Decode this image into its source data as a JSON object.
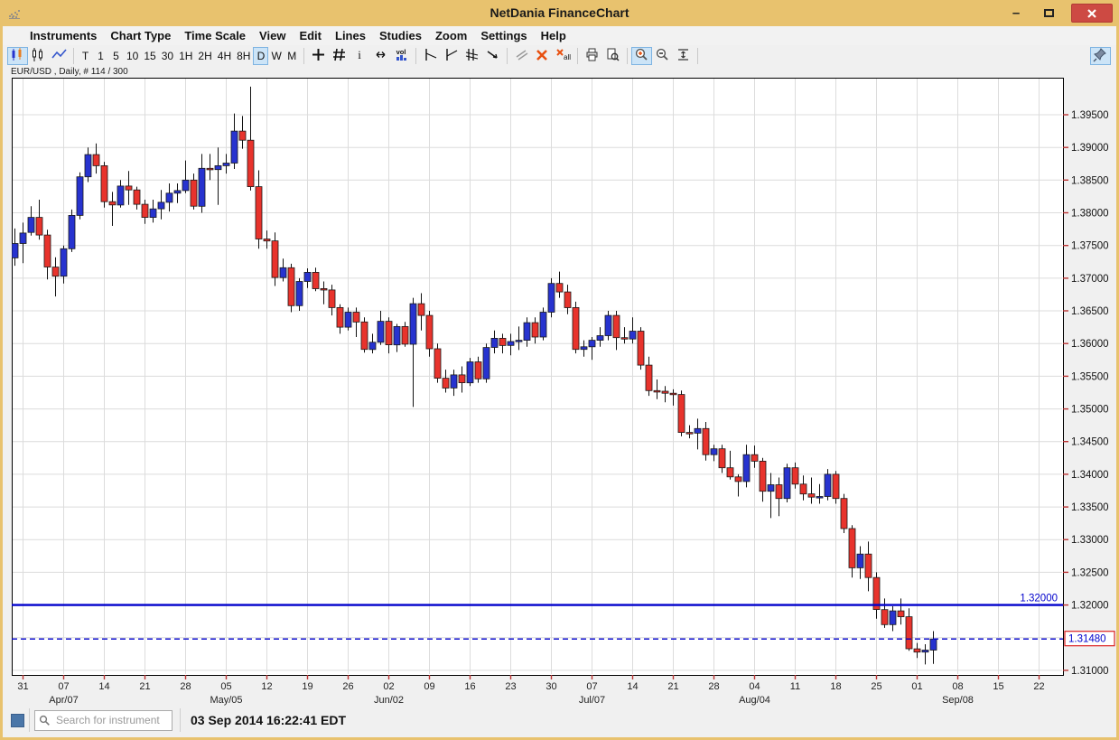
{
  "window": {
    "title": "NetDania FinanceChart",
    "controls": {
      "minimize": "–",
      "close": "x"
    }
  },
  "menu": {
    "items": [
      "Instruments",
      "Chart Type",
      "Time Scale",
      "View",
      "Edit",
      "Lines",
      "Studies",
      "Zoom",
      "Settings",
      "Help"
    ]
  },
  "toolbar": {
    "chart_type_icons": [
      {
        "icon": "candles-colored",
        "name": "chart-type-candlestick",
        "selected": true
      },
      {
        "icon": "candles-outline",
        "name": "chart-type-bars",
        "selected": false
      },
      {
        "icon": "line-zigzag",
        "name": "chart-type-line",
        "selected": false
      }
    ],
    "timeframes": [
      "T",
      "1",
      "5",
      "10",
      "15",
      "30",
      "1H",
      "2H",
      "4H",
      "8H",
      "D",
      "W",
      "M"
    ],
    "selected_timeframe": "D",
    "tool_icons_1": [
      {
        "icon": "crosshair",
        "name": "crosshair-tool",
        "selected": false
      },
      {
        "icon": "grid",
        "name": "grid-toggle",
        "selected": false
      },
      {
        "icon": "info",
        "name": "info-tool",
        "selected": false
      },
      {
        "icon": "h-arrows",
        "name": "horizontal-scroll-tool",
        "selected": false
      },
      {
        "icon": "volume",
        "name": "volume-toggle",
        "selected": false
      }
    ],
    "tool_icons_2": [
      {
        "icon": "trend-down",
        "name": "trendline-down-tool",
        "selected": false
      },
      {
        "icon": "trend-up",
        "name": "trendline-up-tool",
        "selected": false
      },
      {
        "icon": "channel",
        "name": "channel-tool",
        "selected": false
      },
      {
        "icon": "ray",
        "name": "ray-tool",
        "selected": false
      }
    ],
    "tool_icons_3": [
      {
        "icon": "parallel",
        "name": "parallel-lines-tool",
        "selected": false
      },
      {
        "icon": "delete-x",
        "name": "delete-line-button",
        "selected": false
      },
      {
        "icon": "delete-all",
        "name": "delete-all-lines-button",
        "selected": false
      }
    ],
    "tool_icons_4": [
      {
        "icon": "print",
        "name": "print-button",
        "selected": false
      },
      {
        "icon": "preview",
        "name": "print-preview-button",
        "selected": false
      }
    ],
    "tool_icons_5": [
      {
        "icon": "zoom-in",
        "name": "zoom-in-button",
        "selected": true
      },
      {
        "icon": "zoom-out",
        "name": "zoom-out-button",
        "selected": false
      },
      {
        "icon": "fit-vertical",
        "name": "fit-vertical-button",
        "selected": false
      }
    ],
    "pin_button": {
      "icon": "pin",
      "name": "pin-chart-button",
      "selected": true
    }
  },
  "chart": {
    "instrument_label": "EUR/USD , Daily, # 114 / 300",
    "instrument": "EUR/USD",
    "timeframe": "Daily",
    "bar_counter": "# 114 / 300"
  },
  "chart_data": {
    "type": "candlestick",
    "title": "EUR/USD Daily",
    "y_axis": {
      "tick_labels": [
        "1.39500",
        "1.39000",
        "1.38500",
        "1.38000",
        "1.37500",
        "1.37000",
        "1.36500",
        "1.36000",
        "1.35500",
        "1.35000",
        "1.34500",
        "1.34000",
        "1.33500",
        "1.33000",
        "1.32500",
        "1.32000",
        "1.31000"
      ],
      "grid_values": [
        1.395,
        1.39,
        1.385,
        1.38,
        1.375,
        1.37,
        1.365,
        1.36,
        1.355,
        1.35,
        1.345,
        1.34,
        1.335,
        1.33,
        1.325,
        1.32,
        1.315,
        1.31
      ],
      "range": [
        1.30931,
        1.40067
      ]
    },
    "x_axis": {
      "day_ticks": [
        "31",
        "07",
        "14",
        "21",
        "28",
        "05",
        "12",
        "19",
        "26",
        "02",
        "09",
        "16",
        "23",
        "30",
        "07",
        "14",
        "21",
        "28",
        "04",
        "11",
        "18",
        "25",
        "01",
        "08",
        "15",
        "22"
      ],
      "month_labels": [
        {
          "text": "Apr/07",
          "tick_index": 1
        },
        {
          "text": "May/05",
          "tick_index": 5
        },
        {
          "text": "Jun/02",
          "tick_index": 9
        },
        {
          "text": "Jul/07",
          "tick_index": 14
        },
        {
          "text": "Aug/04",
          "tick_index": 18
        },
        {
          "text": "Sep/08",
          "tick_index": 23
        }
      ]
    },
    "horizontal_lines": [
      {
        "price": 1.32,
        "label": "1.32000",
        "style": "solid",
        "label_position": "chart",
        "color": "#0000CC"
      },
      {
        "price": 1.3148,
        "label": "1.31480",
        "style": "dashed",
        "label_position": "axis-boxed",
        "color": "#0000CC"
      }
    ],
    "ohlc": [
      [
        1.3731,
        1.3776,
        1.3719,
        1.3753
      ],
      [
        1.3753,
        1.3785,
        1.3723,
        1.3769
      ],
      [
        1.377,
        1.381,
        1.3765,
        1.3793
      ],
      [
        1.3793,
        1.382,
        1.3759,
        1.3766
      ],
      [
        1.3766,
        1.3774,
        1.3698,
        1.3717
      ],
      [
        1.3717,
        1.3732,
        1.3672,
        1.3703
      ],
      [
        1.3703,
        1.375,
        1.3692,
        1.3745
      ],
      [
        1.3745,
        1.3805,
        1.374,
        1.3796
      ],
      [
        1.3796,
        1.3862,
        1.379,
        1.3855
      ],
      [
        1.3855,
        1.39,
        1.3847,
        1.3889
      ],
      [
        1.3889,
        1.3906,
        1.386,
        1.3872
      ],
      [
        1.3872,
        1.3878,
        1.3808,
        1.3817
      ],
      [
        1.3817,
        1.3832,
        1.378,
        1.3812
      ],
      [
        1.3812,
        1.385,
        1.3808,
        1.3841
      ],
      [
        1.3841,
        1.3864,
        1.3812,
        1.3835
      ],
      [
        1.3835,
        1.384,
        1.3805,
        1.3813
      ],
      [
        1.3813,
        1.382,
        1.3783,
        1.3793
      ],
      [
        1.3793,
        1.382,
        1.3785,
        1.3806
      ],
      [
        1.3806,
        1.3835,
        1.379,
        1.3816
      ],
      [
        1.3816,
        1.3845,
        1.3802,
        1.383
      ],
      [
        1.383,
        1.3845,
        1.3815,
        1.3834
      ],
      [
        1.3834,
        1.388,
        1.383,
        1.385
      ],
      [
        1.385,
        1.386,
        1.3805,
        1.381
      ],
      [
        1.381,
        1.389,
        1.38,
        1.3868
      ],
      [
        1.3868,
        1.389,
        1.385,
        1.3866
      ],
      [
        1.3866,
        1.39,
        1.3812,
        1.3872
      ],
      [
        1.3872,
        1.389,
        1.386,
        1.3876
      ],
      [
        1.3876,
        1.3952,
        1.3867,
        1.3925
      ],
      [
        1.3925,
        1.3948,
        1.3898,
        1.3911
      ],
      [
        1.3911,
        1.3993,
        1.3834,
        1.384
      ],
      [
        1.384,
        1.3865,
        1.3745,
        1.376
      ],
      [
        1.376,
        1.3773,
        1.3745,
        1.3757
      ],
      [
        1.3757,
        1.377,
        1.3688,
        1.3701
      ],
      [
        1.3701,
        1.373,
        1.3695,
        1.3716
      ],
      [
        1.3716,
        1.3722,
        1.3648,
        1.3658
      ],
      [
        1.3658,
        1.37,
        1.365,
        1.3695
      ],
      [
        1.3695,
        1.3715,
        1.3685,
        1.3709
      ],
      [
        1.3709,
        1.3716,
        1.368,
        1.3684
      ],
      [
        1.3684,
        1.3695,
        1.366,
        1.3682
      ],
      [
        1.3682,
        1.369,
        1.3643,
        1.3655
      ],
      [
        1.3655,
        1.366,
        1.3615,
        1.3625
      ],
      [
        1.3625,
        1.3655,
        1.362,
        1.3648
      ],
      [
        1.3648,
        1.3655,
        1.361,
        1.3633
      ],
      [
        1.3633,
        1.364,
        1.3586,
        1.3591
      ],
      [
        1.3591,
        1.3615,
        1.3585,
        1.3602
      ],
      [
        1.3602,
        1.365,
        1.3598,
        1.3634
      ],
      [
        1.3634,
        1.364,
        1.3585,
        1.3598
      ],
      [
        1.3598,
        1.363,
        1.3587,
        1.3626
      ],
      [
        1.3626,
        1.3633,
        1.3595,
        1.3599
      ],
      [
        1.3599,
        1.367,
        1.3503,
        1.3661
      ],
      [
        1.3661,
        1.3677,
        1.362,
        1.3643
      ],
      [
        1.3643,
        1.365,
        1.358,
        1.3592
      ],
      [
        1.3592,
        1.36,
        1.354,
        1.3547
      ],
      [
        1.3547,
        1.356,
        1.3525,
        1.3532
      ],
      [
        1.3532,
        1.356,
        1.352,
        1.3552
      ],
      [
        1.3552,
        1.3565,
        1.3525,
        1.354
      ],
      [
        1.354,
        1.3578,
        1.3535,
        1.3572
      ],
      [
        1.3572,
        1.358,
        1.354,
        1.3546
      ],
      [
        1.3546,
        1.36,
        1.354,
        1.3594
      ],
      [
        1.3594,
        1.362,
        1.3585,
        1.3608
      ],
      [
        1.3608,
        1.3615,
        1.3585,
        1.3597
      ],
      [
        1.3597,
        1.3615,
        1.3582,
        1.3603
      ],
      [
        1.3603,
        1.3626,
        1.359,
        1.3605
      ],
      [
        1.3605,
        1.364,
        1.3595,
        1.3632
      ],
      [
        1.3632,
        1.364,
        1.36,
        1.361
      ],
      [
        1.361,
        1.3655,
        1.3605,
        1.3648
      ],
      [
        1.3648,
        1.37,
        1.364,
        1.3692
      ],
      [
        1.3692,
        1.371,
        1.367,
        1.3679
      ],
      [
        1.3679,
        1.369,
        1.3645,
        1.3655
      ],
      [
        1.3655,
        1.3664,
        1.3585,
        1.3591
      ],
      [
        1.3591,
        1.3605,
        1.358,
        1.3595
      ],
      [
        1.3595,
        1.361,
        1.3575,
        1.3605
      ],
      [
        1.3605,
        1.3625,
        1.3595,
        1.3612
      ],
      [
        1.3612,
        1.365,
        1.3605,
        1.3643
      ],
      [
        1.3643,
        1.365,
        1.359,
        1.3609
      ],
      [
        1.3609,
        1.3625,
        1.36,
        1.3607
      ],
      [
        1.3607,
        1.364,
        1.36,
        1.3619
      ],
      [
        1.3619,
        1.3625,
        1.356,
        1.3567
      ],
      [
        1.3567,
        1.358,
        1.352,
        1.3528
      ],
      [
        1.3528,
        1.3545,
        1.3515,
        1.3527
      ],
      [
        1.3527,
        1.3535,
        1.351,
        1.3524
      ],
      [
        1.3524,
        1.353,
        1.3505,
        1.3522
      ],
      [
        1.3522,
        1.3528,
        1.3458,
        1.3464
      ],
      [
        1.3464,
        1.3475,
        1.3455,
        1.3463
      ],
      [
        1.3463,
        1.3485,
        1.3438,
        1.347
      ],
      [
        1.347,
        1.348,
        1.3421,
        1.343
      ],
      [
        1.343,
        1.3445,
        1.342,
        1.3439
      ],
      [
        1.3439,
        1.3445,
        1.3402,
        1.341
      ],
      [
        1.341,
        1.3436,
        1.3392,
        1.3396
      ],
      [
        1.3396,
        1.34,
        1.3366,
        1.3389
      ],
      [
        1.3389,
        1.3445,
        1.338,
        1.343
      ],
      [
        1.343,
        1.3444,
        1.341,
        1.342
      ],
      [
        1.342,
        1.3425,
        1.3358,
        1.3374
      ],
      [
        1.3374,
        1.3402,
        1.3333,
        1.3384
      ],
      [
        1.3384,
        1.3395,
        1.3336,
        1.3363
      ],
      [
        1.3363,
        1.3416,
        1.3357,
        1.341
      ],
      [
        1.341,
        1.3418,
        1.3378,
        1.3385
      ],
      [
        1.3385,
        1.3398,
        1.336,
        1.337
      ],
      [
        1.337,
        1.3395,
        1.3355,
        1.3365
      ],
      [
        1.3365,
        1.3385,
        1.3355,
        1.3366
      ],
      [
        1.3366,
        1.3408,
        1.336,
        1.34
      ],
      [
        1.34,
        1.3405,
        1.3355,
        1.3363
      ],
      [
        1.3363,
        1.337,
        1.331,
        1.3317
      ],
      [
        1.3317,
        1.3322,
        1.3242,
        1.3257
      ],
      [
        1.3257,
        1.329,
        1.324,
        1.3278
      ],
      [
        1.3278,
        1.3297,
        1.3221,
        1.3242
      ],
      [
        1.3242,
        1.325,
        1.3179,
        1.3193
      ],
      [
        1.3193,
        1.321,
        1.3165,
        1.317
      ],
      [
        1.317,
        1.3198,
        1.316,
        1.3191
      ],
      [
        1.3191,
        1.321,
        1.317,
        1.3182
      ],
      [
        1.3182,
        1.3195,
        1.313,
        1.3133
      ],
      [
        1.3133,
        1.3142,
        1.3119,
        1.3128
      ],
      [
        1.3128,
        1.314,
        1.3109,
        1.3131
      ],
      [
        1.3131,
        1.316,
        1.311,
        1.3148
      ]
    ],
    "colors": {
      "up": "#2733CF",
      "down": "#E8332C",
      "wick": "#111111",
      "grid": "#DCDCDC",
      "axis_tick": "#BB3333"
    }
  },
  "status_bar": {
    "search_placeholder": "Search for instrument",
    "timestamp": "03 Sep 2014 16:22:41 EDT"
  }
}
